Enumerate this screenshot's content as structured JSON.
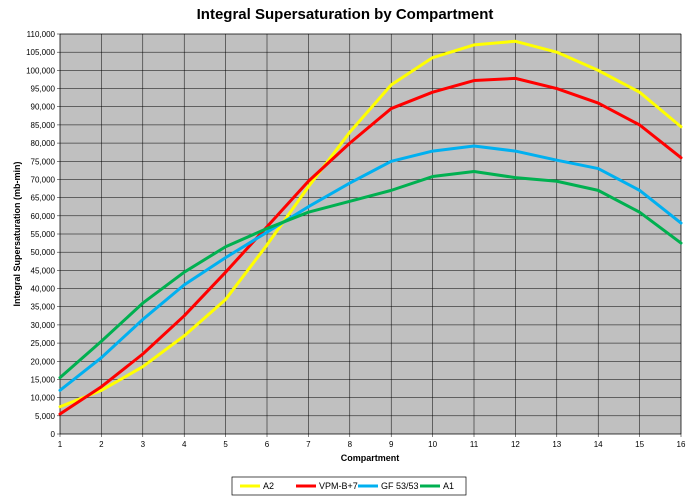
{
  "chart_data": {
    "type": "line",
    "title": "Integral Supersaturation  by Compartment",
    "xlabel": "Compartment",
    "ylabel": "Integral Supersaturation  (mb-min)",
    "x": [
      1,
      2,
      3,
      4,
      5,
      6,
      7,
      8,
      9,
      10,
      11,
      12,
      13,
      14,
      15,
      16
    ],
    "xticks": [
      "1",
      "2",
      "3",
      "4",
      "5",
      "6",
      "7",
      "8",
      "9",
      "10",
      "11",
      "12",
      "13",
      "14",
      "15",
      "16"
    ],
    "ylim": [
      0,
      110000
    ],
    "yticks": [
      "0",
      "5,000",
      "10,000",
      "15,000",
      "20,000",
      "25,000",
      "30,000",
      "35,000",
      "40,000",
      "45,000",
      "50,000",
      "55,000",
      "60,000",
      "65,000",
      "70,000",
      "75,000",
      "80,000",
      "85,000",
      "90,000",
      "95,000",
      "100,000",
      "105,000",
      "110,000"
    ],
    "grid": true,
    "legend_position": "bottom",
    "colors": {
      "plot_bg": "#c0c0c0",
      "grid": "#000000"
    },
    "series": [
      {
        "name": "A2",
        "color": "#ffff00",
        "values": [
          7500,
          12000,
          18500,
          27000,
          37000,
          52000,
          68000,
          83000,
          96000,
          103500,
          107000,
          108000,
          105000,
          100000,
          94000,
          84500
        ]
      },
      {
        "name": "VPM-B+7",
        "color": "#ff0000",
        "values": [
          5500,
          13000,
          22000,
          32500,
          44500,
          57000,
          69500,
          80000,
          89500,
          94000,
          97200,
          97800,
          95000,
          91000,
          85000,
          76000
        ]
      },
      {
        "name": "GF 53/53",
        "color": "#00b0f0",
        "values": [
          12000,
          21000,
          31500,
          41000,
          48500,
          55500,
          62500,
          69000,
          75000,
          77800,
          79200,
          77800,
          75300,
          73000,
          67000,
          58000
        ]
      },
      {
        "name": "A1",
        "color": "#00b050",
        "values": [
          15500,
          25500,
          36000,
          44500,
          51500,
          56500,
          61000,
          64000,
          67000,
          70800,
          72200,
          70500,
          69500,
          67000,
          61000,
          52500
        ]
      }
    ]
  }
}
